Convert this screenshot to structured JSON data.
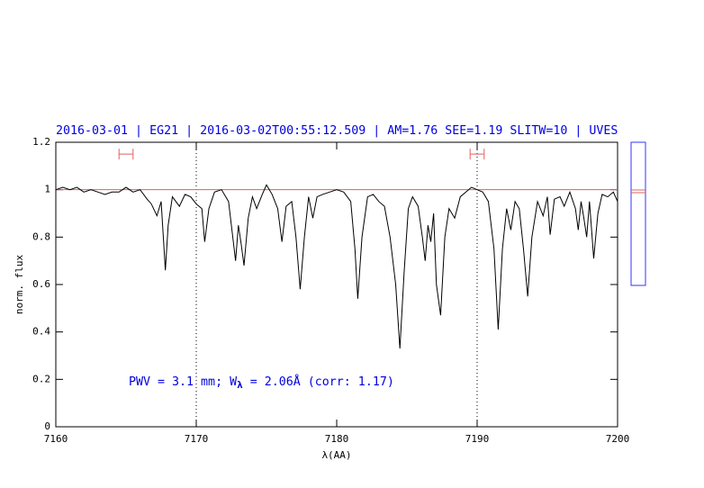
{
  "chart_data": {
    "type": "line",
    "title": "2016-03-01 | EG21 | 2016-03-02T00:55:12.509 | AM=1.76 SEE=1.19 SLITW=10 | UVES",
    "xlabel": "λ(AA)",
    "ylabel": "norm. flux",
    "annotation": [
      "PWV = 3.1 mm; W",
      "λ",
      " = 2.06Å (corr: 1.17)"
    ],
    "color": "#000000",
    "continuum": 1,
    "continuum_color": "#e06060",
    "vlines": [
      7170,
      7190
    ],
    "windows": [
      [
        7164.5,
        7165.5
      ],
      [
        7189.5,
        7190.5
      ]
    ],
    "window_level": 1.15,
    "xlim": [
      7160,
      7200
    ],
    "xticks": [
      7160,
      7170,
      7180,
      7190,
      7200
    ],
    "ylim": [
      0,
      1.2
    ],
    "yticks": [
      0,
      0.2,
      0.4,
      0.6,
      0.8,
      1,
      1.2
    ],
    "x": [
      7160.0,
      7160.5,
      7161.0,
      7161.5,
      7162.0,
      7162.5,
      7163.0,
      7163.5,
      7164.0,
      7164.5,
      7165.0,
      7165.5,
      7166.0,
      7166.5,
      7166.8,
      7167.2,
      7167.5,
      7167.8,
      7168.0,
      7168.3,
      7168.8,
      7169.2,
      7169.6,
      7170.0,
      7170.4,
      7170.6,
      7170.9,
      7171.3,
      7171.8,
      7172.3,
      7172.6,
      7172.8,
      7173.0,
      7173.2,
      7173.4,
      7173.7,
      7174.0,
      7174.3,
      7174.7,
      7175.0,
      7175.4,
      7175.8,
      7176.1,
      7176.4,
      7176.8,
      7177.1,
      7177.4,
      7177.7,
      7178.0,
      7178.3,
      7178.6,
      7179.0,
      7179.5,
      7180.0,
      7180.5,
      7181.0,
      7181.3,
      7181.5,
      7181.8,
      7182.2,
      7182.6,
      7183.0,
      7183.4,
      7183.8,
      7184.2,
      7184.5,
      7184.8,
      7185.1,
      7185.4,
      7185.8,
      7186.1,
      7186.3,
      7186.5,
      7186.7,
      7186.9,
      7187.1,
      7187.4,
      7187.7,
      7188.0,
      7188.4,
      7188.8,
      7189.2,
      7189.6,
      7190.0,
      7190.4,
      7190.8,
      7191.2,
      7191.5,
      7191.8,
      7192.1,
      7192.4,
      7192.7,
      7193.0,
      7193.3,
      7193.6,
      7193.9,
      7194.3,
      7194.7,
      7195.0,
      7195.2,
      7195.5,
      7195.9,
      7196.2,
      7196.6,
      7197.0,
      7197.2,
      7197.4,
      7197.6,
      7197.8,
      7198.0,
      7198.3,
      7198.6,
      7198.9,
      7199.3,
      7199.7,
      7200.0
    ],
    "values": [
      1.0,
      1.01,
      1.0,
      1.01,
      0.99,
      1.0,
      0.99,
      0.98,
      0.99,
      0.99,
      1.01,
      0.99,
      1.0,
      0.96,
      0.94,
      0.89,
      0.95,
      0.66,
      0.85,
      0.97,
      0.93,
      0.98,
      0.97,
      0.94,
      0.92,
      0.78,
      0.92,
      0.99,
      1.0,
      0.95,
      0.8,
      0.7,
      0.85,
      0.77,
      0.68,
      0.88,
      0.97,
      0.92,
      0.98,
      1.02,
      0.98,
      0.92,
      0.78,
      0.93,
      0.95,
      0.8,
      0.58,
      0.8,
      0.97,
      0.88,
      0.97,
      0.98,
      0.99,
      1.0,
      0.99,
      0.95,
      0.75,
      0.54,
      0.8,
      0.97,
      0.98,
      0.95,
      0.93,
      0.8,
      0.6,
      0.33,
      0.65,
      0.92,
      0.97,
      0.93,
      0.8,
      0.7,
      0.85,
      0.78,
      0.9,
      0.6,
      0.47,
      0.8,
      0.92,
      0.88,
      0.97,
      0.99,
      1.01,
      1.0,
      0.99,
      0.95,
      0.75,
      0.41,
      0.75,
      0.92,
      0.83,
      0.95,
      0.92,
      0.75,
      0.55,
      0.8,
      0.95,
      0.89,
      0.97,
      0.81,
      0.96,
      0.97,
      0.93,
      0.99,
      0.92,
      0.83,
      0.95,
      0.88,
      0.8,
      0.95,
      0.71,
      0.9,
      0.98,
      0.97,
      0.99,
      0.95
    ]
  }
}
